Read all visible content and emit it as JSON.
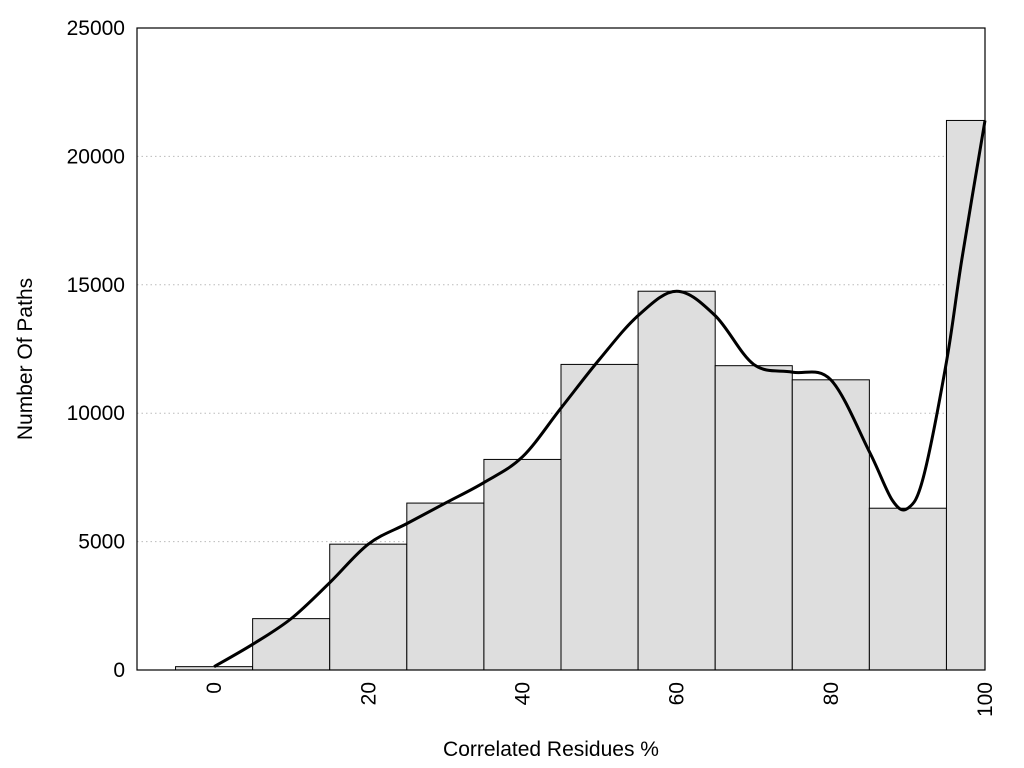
{
  "chart_data": {
    "type": "bar",
    "title": "",
    "xlabel": "Correlated Residues %",
    "ylabel": "Number Of Paths",
    "xlim": [
      -10,
      100
    ],
    "ylim": [
      0,
      25000
    ],
    "x_ticks": [
      "0",
      "20",
      "40",
      "60",
      "80",
      "100"
    ],
    "y_ticks": [
      "0",
      "5000",
      "10000",
      "15000",
      "20000",
      "25000"
    ],
    "grid": "horizontal-dotted",
    "colors": {
      "bar_fill": "#dedede",
      "bar_stroke": "#000000",
      "curve": "#000000",
      "grid": "#bbbbbb"
    },
    "bins": [
      {
        "start": -5,
        "end": 5,
        "value": 130
      },
      {
        "start": 5,
        "end": 15,
        "value": 2000
      },
      {
        "start": 15,
        "end": 25,
        "value": 4900
      },
      {
        "start": 25,
        "end": 35,
        "value": 6500
      },
      {
        "start": 35,
        "end": 45,
        "value": 8200
      },
      {
        "start": 45,
        "end": 55,
        "value": 11900
      },
      {
        "start": 55,
        "end": 65,
        "value": 14750
      },
      {
        "start": 65,
        "end": 75,
        "value": 11850
      },
      {
        "start": 75,
        "end": 85,
        "value": 11300
      },
      {
        "start": 85,
        "end": 95,
        "value": 6300
      },
      {
        "start": 95,
        "end": 100,
        "value": 21400
      }
    ],
    "curve": [
      {
        "x": 0,
        "y": 130
      },
      {
        "x": 5,
        "y": 1000
      },
      {
        "x": 10,
        "y": 2000
      },
      {
        "x": 15,
        "y": 3400
      },
      {
        "x": 20,
        "y": 4900
      },
      {
        "x": 25,
        "y": 5700
      },
      {
        "x": 30,
        "y": 6500
      },
      {
        "x": 35,
        "y": 7300
      },
      {
        "x": 40,
        "y": 8300
      },
      {
        "x": 45,
        "y": 10200
      },
      {
        "x": 50,
        "y": 12100
      },
      {
        "x": 55,
        "y": 13800
      },
      {
        "x": 60,
        "y": 14750
      },
      {
        "x": 65,
        "y": 13800
      },
      {
        "x": 70,
        "y": 11900
      },
      {
        "x": 75,
        "y": 11600
      },
      {
        "x": 80,
        "y": 11300
      },
      {
        "x": 85,
        "y": 8500
      },
      {
        "x": 88,
        "y": 6600
      },
      {
        "x": 90,
        "y": 6300
      },
      {
        "x": 92,
        "y": 7500
      },
      {
        "x": 95,
        "y": 12000
      },
      {
        "x": 97,
        "y": 16000
      },
      {
        "x": 100,
        "y": 21400
      }
    ]
  }
}
